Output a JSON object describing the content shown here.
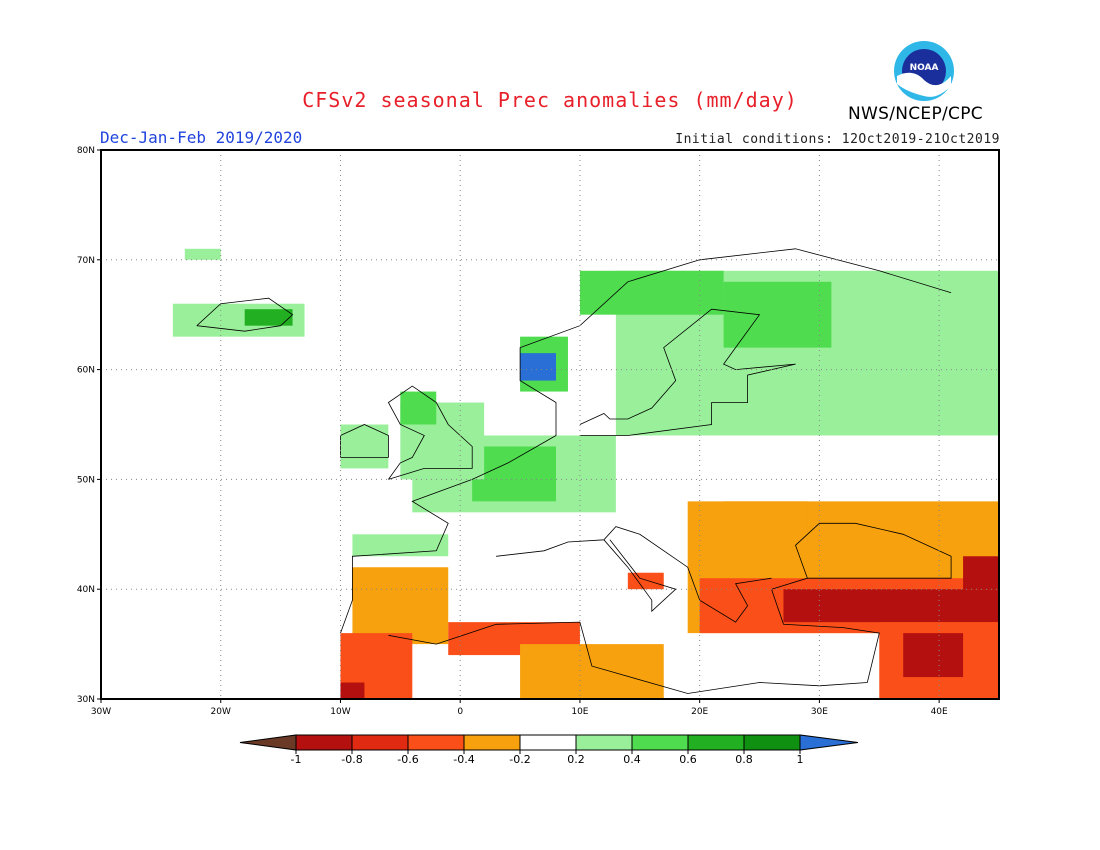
{
  "title": "CFSv2 seasonal Prec anomalies (mm/day)",
  "season": "Dec-Jan-Feb 2019/2020",
  "initial_conditions": "Initial conditions: 12Oct2019-21Oct2019",
  "agency": "NWS/NCEP/CPC",
  "logo_text": "NOAA",
  "map": {
    "lon_range": [
      -30,
      45
    ],
    "lat_range": [
      30,
      80
    ],
    "lon_ticks": [
      -30,
      -20,
      -10,
      0,
      10,
      20,
      30,
      40
    ],
    "lon_tick_labels": [
      "30W",
      "20W",
      "10W",
      "0",
      "10E",
      "20E",
      "30E",
      "40E"
    ],
    "lat_ticks": [
      30,
      40,
      50,
      60,
      70,
      80
    ],
    "lat_tick_labels": [
      "30N",
      "40N",
      "50N",
      "60N",
      "70N",
      "80N"
    ],
    "grid": "dotted",
    "colors": {
      "lt_-0.8": "#b51010",
      "-0.8_-0.6": "#e02a12",
      "-0.6_-0.4": "#fa4f18",
      "-0.4_-0.2": "#f7a10e",
      "0.2_0.4": "#9af09a",
      "0.4_0.6": "#4fdc4f",
      "0.6_0.8": "#22b022",
      "0.8_1": "#109010",
      "gt_1": "#2a6fd6"
    },
    "regions": [
      {
        "level": "0.2_0.4",
        "lon": [
          13,
          45
        ],
        "lat": [
          54,
          69
        ],
        "desc": "Scandinavia to western Russia wet"
      },
      {
        "level": "0.4_0.6",
        "lon": [
          22,
          31
        ],
        "lat": [
          62,
          68
        ]
      },
      {
        "level": "0.4_0.6",
        "lon": [
          10,
          22
        ],
        "lat": [
          65,
          69
        ]
      },
      {
        "level": "0.2_0.4",
        "lon": [
          -4,
          13
        ],
        "lat": [
          47,
          54
        ]
      },
      {
        "level": "0.4_0.6",
        "lon": [
          1,
          8
        ],
        "lat": [
          48,
          53
        ]
      },
      {
        "level": "0.2_0.4",
        "lon": [
          -5,
          2
        ],
        "lat": [
          50,
          57
        ]
      },
      {
        "level": "0.4_0.6",
        "lon": [
          -5,
          -2
        ],
        "lat": [
          55,
          58
        ]
      },
      {
        "level": "0.2_0.4",
        "lon": [
          -10,
          -6
        ],
        "lat": [
          51,
          55
        ]
      },
      {
        "level": "0.2_0.4",
        "lon": [
          -24,
          -13
        ],
        "lat": [
          63,
          66
        ]
      },
      {
        "level": "0.6_0.8",
        "lon": [
          -18,
          -14
        ],
        "lat": [
          64,
          65.5
        ]
      },
      {
        "level": "0.2_0.4",
        "lon": [
          -9,
          -1
        ],
        "lat": [
          43,
          45
        ]
      },
      {
        "level": "0.4_0.6",
        "lon": [
          5,
          9
        ],
        "lat": [
          58,
          63
        ]
      },
      {
        "level": "gt_1",
        "lon": [
          5,
          8
        ],
        "lat": [
          59,
          61.5
        ]
      },
      {
        "level": "0.2_0.4",
        "lon": [
          -23,
          -20
        ],
        "lat": [
          70,
          71
        ]
      },
      {
        "level": "-0.4_-0.2",
        "lon": [
          -9,
          -1
        ],
        "lat": [
          35,
          42
        ]
      },
      {
        "level": "-0.6_-0.4",
        "lon": [
          -10,
          -4
        ],
        "lat": [
          30,
          36
        ]
      },
      {
        "level": "lt_-0.8",
        "lon": [
          -10,
          -8
        ],
        "lat": [
          30,
          31.5
        ]
      },
      {
        "level": "-0.6_-0.4",
        "lon": [
          -1,
          10
        ],
        "lat": [
          34,
          37
        ]
      },
      {
        "level": "-0.4_-0.2",
        "lon": [
          5,
          17
        ],
        "lat": [
          30,
          35
        ]
      },
      {
        "level": "-0.4_-0.2",
        "lon": [
          19,
          45
        ],
        "lat": [
          36,
          48
        ]
      },
      {
        "level": "-0.6_-0.4",
        "lon": [
          20,
          45
        ],
        "lat": [
          36,
          41
        ]
      },
      {
        "level": "lt_-0.8",
        "lon": [
          27,
          45
        ],
        "lat": [
          37,
          40
        ]
      },
      {
        "level": "lt_-0.8",
        "lon": [
          42,
          45
        ],
        "lat": [
          40,
          43
        ]
      },
      {
        "level": "-0.6_-0.4",
        "lon": [
          35,
          45
        ],
        "lat": [
          30,
          37
        ]
      },
      {
        "level": "lt_-0.8",
        "lon": [
          37,
          42
        ],
        "lat": [
          32,
          36
        ]
      },
      {
        "level": "-0.6_-0.4",
        "lon": [
          14,
          17
        ],
        "lat": [
          40,
          41.5
        ]
      },
      {
        "level": "-0.4_-0.2",
        "lon": [
          22,
          29
        ],
        "lat": [
          44,
          48
        ]
      }
    ]
  },
  "legend": {
    "labels": [
      "-1",
      "-0.8",
      "-0.6",
      "-0.4",
      "-0.2",
      "0.2",
      "0.4",
      "0.6",
      "0.8",
      "1"
    ],
    "colors": [
      "#6a3a26",
      "#b51010",
      "#e02a12",
      "#fa4f18",
      "#f7a10e",
      "#ffffff",
      "#9af09a",
      "#4fdc4f",
      "#22b022",
      "#109010",
      "#2a6fd6"
    ]
  }
}
